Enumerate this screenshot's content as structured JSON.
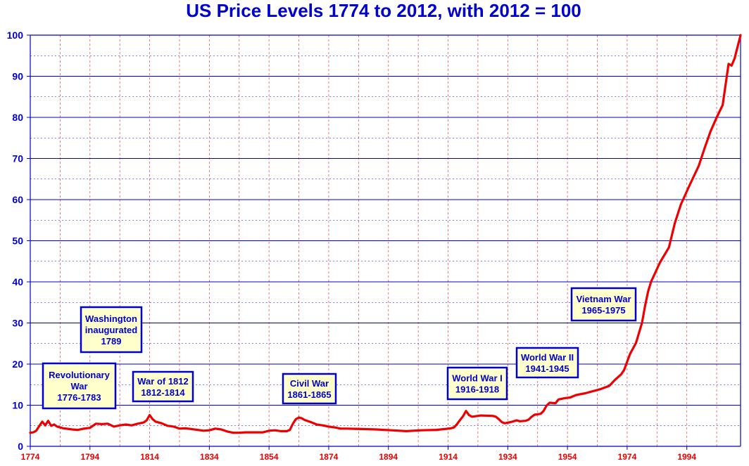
{
  "chart_data": {
    "type": "line",
    "title": "US Price Levels 1774 to 2012, with 2012 = 100",
    "xlabel": "",
    "ylabel": "",
    "xlim": [
      1774,
      2012
    ],
    "ylim": [
      0,
      100
    ],
    "x_ticks": [
      "1774",
      "1794",
      "1814",
      "1834",
      "1854",
      "1874",
      "1894",
      "1914",
      "1934",
      "1954",
      "1974",
      "1994"
    ],
    "y_ticks": [
      "0",
      "10",
      "20",
      "30",
      "40",
      "50",
      "60",
      "70",
      "80",
      "90",
      "100"
    ],
    "grid": true,
    "colors": {
      "line": "#ee0000",
      "axis": "#0000cc",
      "grid_vertical": "#ee5555",
      "grid_horizontal": "#0000cc",
      "annotation_fill": "#ffffcc"
    },
    "series": [
      {
        "x": [
          1774,
          1775,
          1776,
          1777,
          1778,
          1779,
          1780,
          1781,
          1782,
          1783,
          1784,
          1785,
          1786,
          1788,
          1790,
          1792,
          1794,
          1796,
          1798,
          1800,
          1802,
          1804,
          1806,
          1808,
          1810,
          1812,
          1813,
          1814,
          1815,
          1816,
          1818,
          1820,
          1822,
          1824,
          1826,
          1828,
          1830,
          1832,
          1834,
          1836,
          1838,
          1840,
          1842,
          1844,
          1846,
          1848,
          1850,
          1852,
          1854,
          1856,
          1858,
          1860,
          1861,
          1862,
          1863,
          1864,
          1865,
          1866,
          1868,
          1870,
          1872,
          1874,
          1876,
          1878,
          1880,
          1885,
          1890,
          1895,
          1900,
          1905,
          1910,
          1913,
          1915,
          1916,
          1917,
          1918,
          1919,
          1920,
          1921,
          1922,
          1925,
          1929,
          1930,
          1931,
          1932,
          1933,
          1935,
          1937,
          1938,
          1940,
          1941,
          1942,
          1943,
          1945,
          1946,
          1947,
          1948,
          1950,
          1951,
          1953,
          1955,
          1957,
          1960,
          1965,
          1968,
          1970,
          1972,
          1973,
          1974,
          1975,
          1977,
          1979,
          1980,
          1981,
          1982,
          1985,
          1988,
          1990,
          1992,
          1995,
          1998,
          2000,
          2002,
          2004,
          2006,
          2007,
          2008,
          2009,
          2010,
          2012
        ],
        "values": [
          3.3,
          3.4,
          3.8,
          4.9,
          6.0,
          5.1,
          6.2,
          5.0,
          5.3,
          4.8,
          4.6,
          4.4,
          4.3,
          4.1,
          4.0,
          4.3,
          4.5,
          5.5,
          5.4,
          5.5,
          4.8,
          5.1,
          5.3,
          5.1,
          5.5,
          5.8,
          6.3,
          7.6,
          6.6,
          6.0,
          5.6,
          5.0,
          4.8,
          4.3,
          4.4,
          4.2,
          4.0,
          3.8,
          3.9,
          4.3,
          4.1,
          3.6,
          3.3,
          3.3,
          3.4,
          3.4,
          3.4,
          3.4,
          3.8,
          3.9,
          3.7,
          3.7,
          4.0,
          5.5,
          6.6,
          7.0,
          6.8,
          6.4,
          5.9,
          5.3,
          5.1,
          4.8,
          4.6,
          4.3,
          4.3,
          4.2,
          4.1,
          3.9,
          3.7,
          3.9,
          4.0,
          4.2,
          4.4,
          4.6,
          5.4,
          6.4,
          7.3,
          8.6,
          7.6,
          7.2,
          7.5,
          7.4,
          7.2,
          6.6,
          5.9,
          5.6,
          5.9,
          6.3,
          6.1,
          6.2,
          6.5,
          7.2,
          7.7,
          7.9,
          8.6,
          9.9,
          10.6,
          10.5,
          11.4,
          11.7,
          11.9,
          12.5,
          12.9,
          13.9,
          14.7,
          16.2,
          17.5,
          18.6,
          20.6,
          22.5,
          25.2,
          30.1,
          34.1,
          37.6,
          40.0,
          44.7,
          48.4,
          54.3,
          58.8,
          63.6,
          68.2,
          72.6,
          76.7,
          80.0,
          83.0,
          88.0,
          93.0,
          92.6,
          94.3,
          100
        ]
      }
    ],
    "annotations": [
      {
        "lines": [
          "Revolutionary",
          "War",
          "1776-1783"
        ],
        "anchor_year": 1776
      },
      {
        "lines": [
          "Washington",
          "inaugurated",
          "1789"
        ],
        "anchor_year": 1789
      },
      {
        "lines": [
          "War of 1812",
          "1812-1814"
        ],
        "anchor_year": 1812
      },
      {
        "lines": [
          "Civil War",
          "1861-1865"
        ],
        "anchor_year": 1861
      },
      {
        "lines": [
          "World War I",
          "1916-1918"
        ],
        "anchor_year": 1916
      },
      {
        "lines": [
          "World War II",
          "1941-1945"
        ],
        "anchor_year": 1941
      },
      {
        "lines": [
          "Vietnam War",
          "1965-1975"
        ],
        "anchor_year": 1965
      }
    ]
  }
}
